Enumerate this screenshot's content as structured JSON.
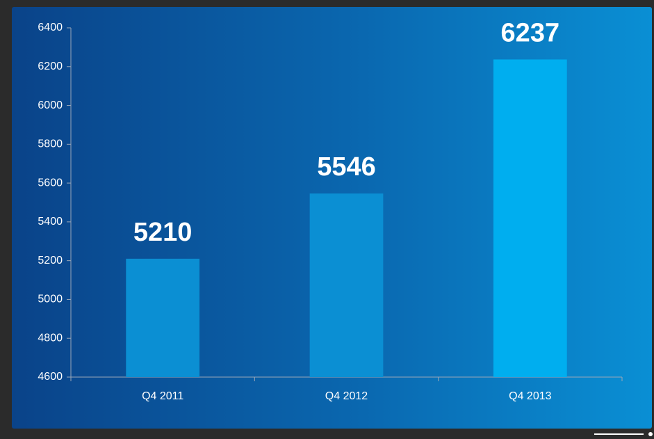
{
  "chart_data": {
    "type": "bar",
    "categories": [
      "Q4 2011",
      "Q4 2012",
      "Q4 2013"
    ],
    "values": [
      5210,
      5546,
      6237
    ],
    "colors": [
      "#0b8fd3",
      "#0b8fd3",
      "#00aeef"
    ],
    "ylim": [
      4600,
      6400
    ],
    "yticks": [
      4600,
      4800,
      5000,
      5200,
      5400,
      5600,
      5800,
      6000,
      6200,
      6400
    ],
    "grid": false
  }
}
